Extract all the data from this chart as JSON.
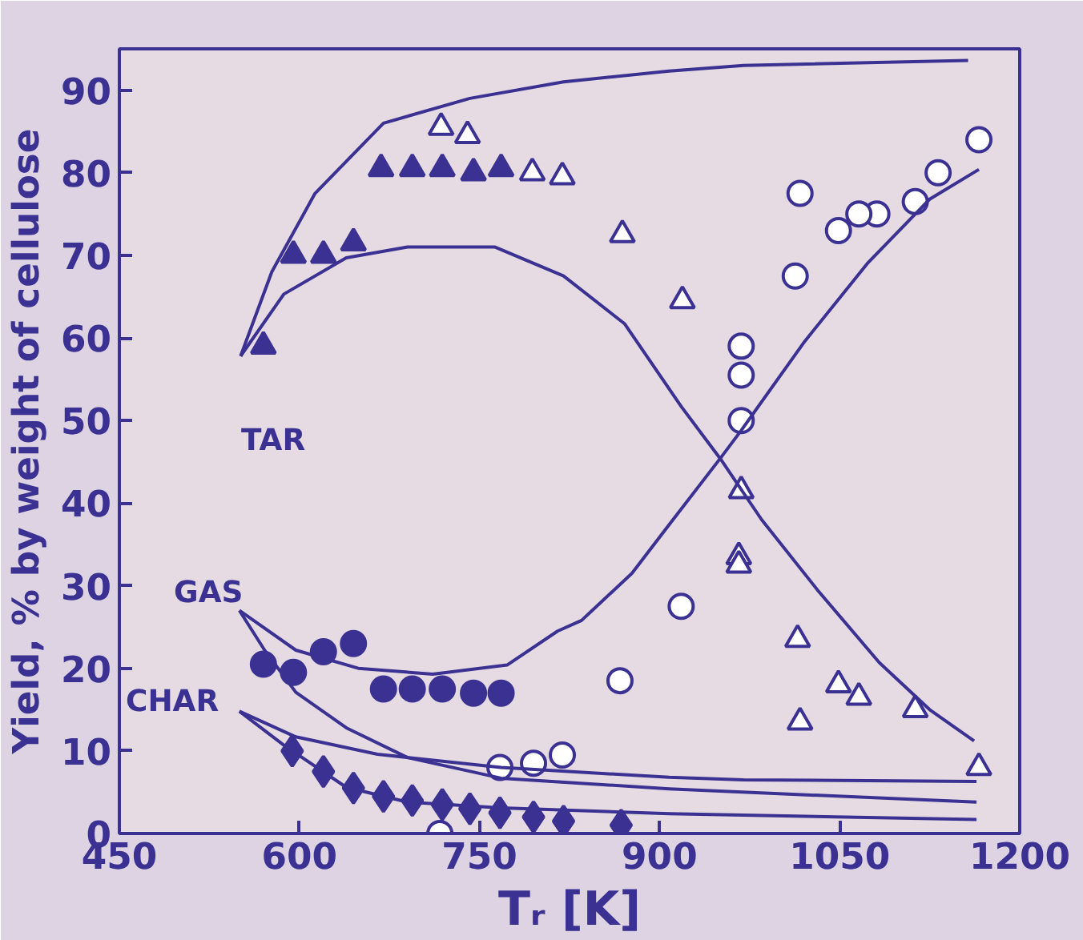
{
  "chart_data": {
    "type": "scatter",
    "xlabel": "Tᵣ [K]",
    "ylabel": "Yield, % by weight of cellulose",
    "xlim": [
      450,
      1200
    ],
    "ylim": [
      0,
      95
    ],
    "xticks": [
      450,
      600,
      750,
      900,
      1050,
      1200
    ],
    "yticks": [
      0,
      10,
      20,
      30,
      40,
      50,
      60,
      70,
      80,
      90
    ],
    "grid": false,
    "annotations": [
      "TAR",
      "GAS",
      "CHAR"
    ],
    "series": [
      {
        "marker": "triangle",
        "color": "#3a3192",
        "x": [
          570,
          595,
          620,
          645,
          668,
          694,
          719,
          745,
          768
        ],
        "values": [
          59,
          70,
          70,
          71.5,
          80.5,
          80.5,
          80.5,
          80,
          80.5
        ]
      },
      {
        "marker": "triangle",
        "color": "#ffffff",
        "x": [
          718,
          740,
          794,
          819,
          869,
          919,
          968,
          966,
          966,
          1015,
          1049,
          1066,
          1017,
          1113,
          1166
        ],
        "values": [
          85.5,
          84.5,
          80,
          79.5,
          72.5,
          64.5,
          41.5,
          33.5,
          32.5,
          23.5,
          18,
          16.5,
          13.5,
          15,
          8
        ]
      },
      {
        "marker": "circle",
        "color": "#3a3192",
        "x": [
          570,
          595,
          620,
          645,
          670,
          694,
          719,
          745,
          768
        ],
        "values": [
          20.5,
          19.5,
          22,
          23,
          17.5,
          17.5,
          17.5,
          17,
          17
        ]
      },
      {
        "marker": "circle",
        "color": "#ffffff",
        "x": [
          1166,
          1132,
          1113,
          1081,
          1066,
          1049,
          1017,
          1013,
          968,
          968,
          968,
          918,
          867,
          819,
          795,
          767,
          717
        ],
        "values": [
          84,
          80,
          76.5,
          75,
          75,
          73,
          77.5,
          67.5,
          59,
          55.5,
          50,
          27.5,
          18.5,
          9.5,
          8.5,
          8,
          0
        ]
      },
      {
        "marker": "diamond",
        "color": "#3a3192",
        "x": [
          594,
          620,
          645,
          670,
          694,
          719,
          742,
          767,
          795,
          820,
          868
        ],
        "values": [
          10,
          7.5,
          5.5,
          4.5,
          4,
          3.5,
          3,
          2.5,
          2,
          1.5,
          1
        ]
      },
      {
        "type": "line",
        "color": "#3a3192",
        "x": [
          551,
          577,
          613,
          670,
          742,
          820,
          908,
          970,
          1157
        ],
        "values": [
          57.8,
          68,
          77.5,
          86,
          89,
          91,
          92.3,
          93,
          93.6
        ]
      },
      {
        "type": "line",
        "color": "#3a3192",
        "x": [
          551,
          587,
          639,
          690,
          763,
          820,
          871,
          918,
          951,
          985,
          1032,
          1083,
          1125,
          1162
        ],
        "values": [
          57.8,
          65.3,
          69.7,
          71,
          71,
          67.5,
          61.7,
          51.7,
          45.3,
          38,
          29.4,
          20.7,
          15,
          11.2
        ]
      },
      {
        "type": "line",
        "color": "#3a3192",
        "x": [
          550,
          597,
          649,
          711,
          773,
          815,
          835,
          877,
          908,
          951,
          968,
          1021,
          1073,
          1125,
          1166
        ],
        "values": [
          27,
          22.2,
          20,
          19.3,
          20.4,
          24.5,
          25.8,
          31.5,
          37.4,
          45.5,
          48.8,
          59.6,
          69,
          76.8,
          80.4
        ]
      },
      {
        "type": "line",
        "color": "#3a3192",
        "x": [
          550,
          571,
          597,
          639,
          690,
          768,
          908,
          1164
        ],
        "values": [
          27,
          22.2,
          17.1,
          12.8,
          9.2,
          6.7,
          5.4,
          3.8
        ]
      },
      {
        "type": "line",
        "color": "#3a3192",
        "x": [
          550,
          597,
          665,
          768,
          908,
          970,
          1164
        ],
        "values": [
          14.8,
          11.7,
          9.6,
          8,
          6.8,
          6.5,
          6.3
        ]
      },
      {
        "type": "line",
        "color": "#3a3192",
        "x": [
          550,
          587,
          639,
          690,
          768,
          908,
          1164
        ],
        "values": [
          14.8,
          10.7,
          5.6,
          3.8,
          3.1,
          2.4,
          1.7
        ]
      }
    ]
  }
}
